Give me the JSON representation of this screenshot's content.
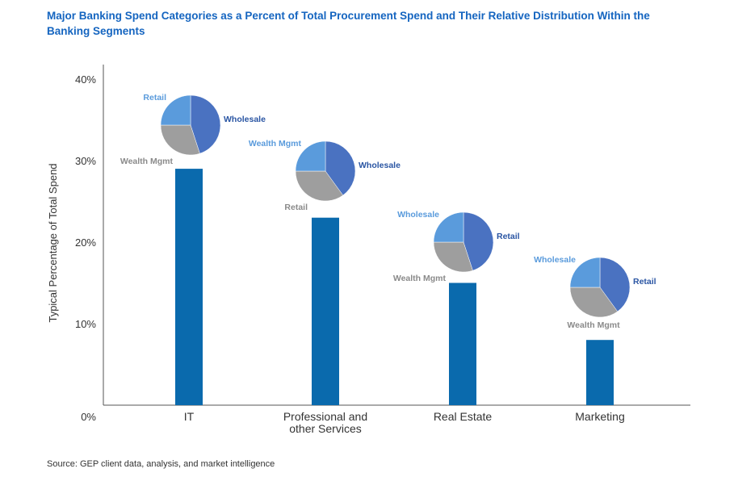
{
  "title": "Major Banking Spend Categories as a Percent of Total Procurement Spend and Their Relative Distribution Within the Banking Segments",
  "source": "Source: GEP client data, analysis, and market intelligence",
  "colors": {
    "bar": "#0a6aad",
    "title": "#1565c0",
    "wholesale": "#4a72c1",
    "retail": "#5a9bdc",
    "wealth": "#9e9e9e",
    "wholesale_label": "#2a55a3",
    "retail_label": "#5a9bdc",
    "wealth_label": "#8a8a8a"
  },
  "chart_data": {
    "type": "bar",
    "title": "Major Banking Spend Categories as a Percent of Total Procurement Spend and Their Relative Distribution Within the Banking Segments",
    "ylabel": "Typical Percentage of Total Spend",
    "xlabel": "",
    "ylim": [
      0,
      40
    ],
    "yticks": [
      "0%",
      "10%",
      "20%",
      "30%",
      "40%"
    ],
    "grid": false,
    "categories": [
      {
        "label": [
          "IT"
        ],
        "value": 29
      },
      {
        "label": [
          "Professional and",
          "other Services"
        ],
        "value": 23
      },
      {
        "label": [
          "Real Estate"
        ],
        "value": 15
      },
      {
        "label": [
          "Marketing"
        ],
        "value": 8
      }
    ],
    "pies": [
      {
        "category": "IT",
        "slices": [
          {
            "name": "Wholesale",
            "value": 45,
            "color": "#4a72c1",
            "label_color": "#2a55a3",
            "label_pos": "right"
          },
          {
            "name": "Wealth Mgmt",
            "value": 30,
            "color": "#9e9e9e",
            "label_color": "#8a8a8a",
            "label_pos": "bottom-left"
          },
          {
            "name": "Retail",
            "value": 25,
            "color": "#5a9bdc",
            "label_color": "#5a9bdc",
            "label_pos": "top-left"
          }
        ]
      },
      {
        "category": "Professional and other Services",
        "slices": [
          {
            "name": "Wholesale",
            "value": 40,
            "color": "#4a72c1",
            "label_color": "#2a55a3",
            "label_pos": "right"
          },
          {
            "name": "Retail",
            "value": 35,
            "color": "#9e9e9e",
            "label_color": "#8a8a8a",
            "label_pos": "bottom-left"
          },
          {
            "name": "Wealth Mgmt",
            "value": 25,
            "color": "#5a9bdc",
            "label_color": "#5a9bdc",
            "label_pos": "top-left"
          }
        ]
      },
      {
        "category": "Real Estate",
        "slices": [
          {
            "name": "Retail",
            "value": 45,
            "color": "#4a72c1",
            "label_color": "#2a55a3",
            "label_pos": "right"
          },
          {
            "name": "Wealth Mgmt",
            "value": 30,
            "color": "#9e9e9e",
            "label_color": "#8a8a8a",
            "label_pos": "bottom-left"
          },
          {
            "name": "Wholesale",
            "value": 25,
            "color": "#5a9bdc",
            "label_color": "#5a9bdc",
            "label_pos": "top-left"
          }
        ]
      },
      {
        "category": "Marketing",
        "slices": [
          {
            "name": "Retail",
            "value": 40,
            "color": "#4a72c1",
            "label_color": "#2a55a3",
            "label_pos": "right"
          },
          {
            "name": "Wealth Mgmt",
            "value": 35,
            "color": "#9e9e9e",
            "label_color": "#8a8a8a",
            "label_pos": "bottom"
          },
          {
            "name": "Wholesale",
            "value": 25,
            "color": "#5a9bdc",
            "label_color": "#5a9bdc",
            "label_pos": "top-left"
          }
        ]
      }
    ]
  }
}
